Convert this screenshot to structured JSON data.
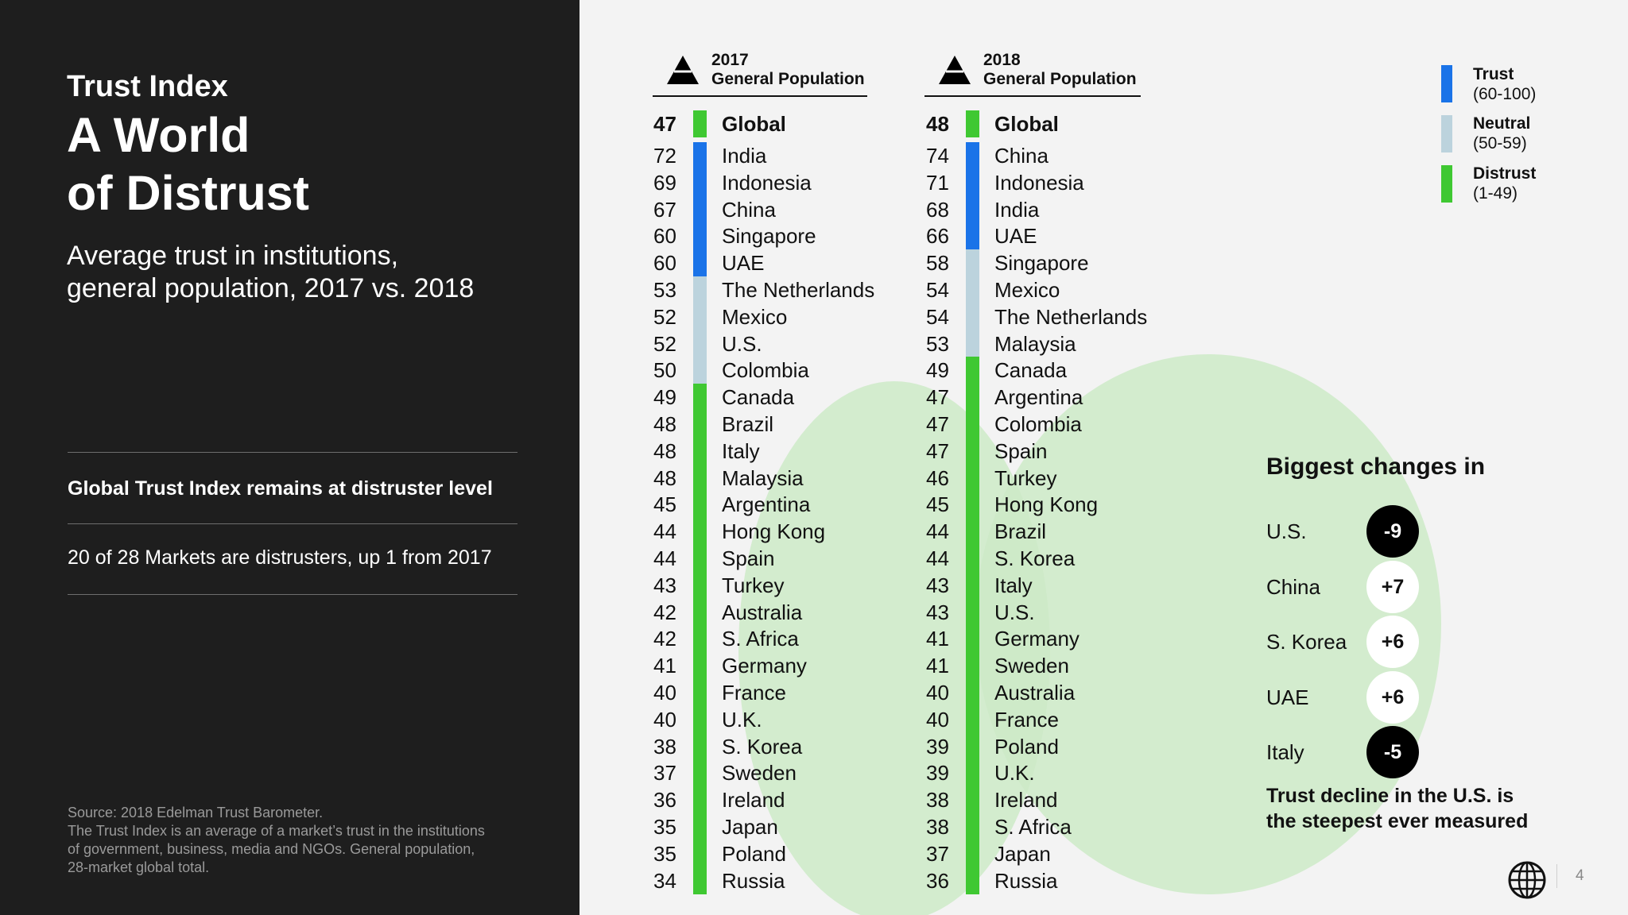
{
  "left": {
    "label": "Trust Index",
    "title_lines": [
      "A World",
      "of Distrust"
    ],
    "subtitle_lines": [
      "Average trust in institutions,",
      "general population, 2017 vs. 2018"
    ],
    "finding1": "Global Trust Index remains at distruster level",
    "finding2": "20 of 28 Markets are distrusters, up 1 from 2017",
    "source_lines": [
      "Source: 2018 Edelman Trust Barometer.",
      "The Trust Index is an average of a market’s trust in the institutions",
      "of government, business, media and NGOs. General population,",
      "28-market global total."
    ]
  },
  "legend": [
    {
      "name": "Trust",
      "range": "(60-100)",
      "color": "#1a73e8"
    },
    {
      "name": "Neutral",
      "range": "(50-59)",
      "color": "#bcd3dd"
    },
    {
      "name": "Distrust",
      "range": "(1-49)",
      "color": "#3fc832"
    }
  ],
  "chart_data": [
    {
      "type": "table",
      "year": "2017",
      "population": "General Population",
      "rows": [
        {
          "country": "Global",
          "value": 47
        },
        {
          "country": "India",
          "value": 72
        },
        {
          "country": "Indonesia",
          "value": 69
        },
        {
          "country": "China",
          "value": 67
        },
        {
          "country": "Singapore",
          "value": 60
        },
        {
          "country": "UAE",
          "value": 60
        },
        {
          "country": "The Netherlands",
          "value": 53
        },
        {
          "country": "Mexico",
          "value": 52
        },
        {
          "country": "U.S.",
          "value": 52
        },
        {
          "country": "Colombia",
          "value": 50
        },
        {
          "country": "Canada",
          "value": 49
        },
        {
          "country": "Brazil",
          "value": 48
        },
        {
          "country": "Italy",
          "value": 48
        },
        {
          "country": "Malaysia",
          "value": 48
        },
        {
          "country": "Argentina",
          "value": 45
        },
        {
          "country": "Hong Kong",
          "value": 44
        },
        {
          "country": "Spain",
          "value": 44
        },
        {
          "country": "Turkey",
          "value": 43
        },
        {
          "country": "Australia",
          "value": 42
        },
        {
          "country": "S. Africa",
          "value": 42
        },
        {
          "country": "Germany",
          "value": 41
        },
        {
          "country": "France",
          "value": 40
        },
        {
          "country": "U.K.",
          "value": 40
        },
        {
          "country": "S. Korea",
          "value": 38
        },
        {
          "country": "Sweden",
          "value": 37
        },
        {
          "country": "Ireland",
          "value": 36
        },
        {
          "country": "Japan",
          "value": 35
        },
        {
          "country": "Poland",
          "value": 35
        },
        {
          "country": "Russia",
          "value": 34
        }
      ]
    },
    {
      "type": "table",
      "year": "2018",
      "population": "General Population",
      "rows": [
        {
          "country": "Global",
          "value": 48
        },
        {
          "country": "China",
          "value": 74
        },
        {
          "country": "Indonesia",
          "value": 71
        },
        {
          "country": "India",
          "value": 68
        },
        {
          "country": "UAE",
          "value": 66
        },
        {
          "country": "Singapore",
          "value": 58
        },
        {
          "country": "Mexico",
          "value": 54
        },
        {
          "country": "The Netherlands",
          "value": 54
        },
        {
          "country": "Malaysia",
          "value": 53
        },
        {
          "country": "Canada",
          "value": 49
        },
        {
          "country": "Argentina",
          "value": 47
        },
        {
          "country": "Colombia",
          "value": 47
        },
        {
          "country": "Spain",
          "value": 47
        },
        {
          "country": "Turkey",
          "value": 46
        },
        {
          "country": "Hong Kong",
          "value": 45
        },
        {
          "country": "Brazil",
          "value": 44
        },
        {
          "country": "S. Korea",
          "value": 44
        },
        {
          "country": "Italy",
          "value": 43
        },
        {
          "country": "U.S.",
          "value": 43
        },
        {
          "country": "Germany",
          "value": 41
        },
        {
          "country": "Sweden",
          "value": 41
        },
        {
          "country": "Australia",
          "value": 40
        },
        {
          "country": "France",
          "value": 40
        },
        {
          "country": "Poland",
          "value": 39
        },
        {
          "country": "U.K.",
          "value": 39
        },
        {
          "country": "Ireland",
          "value": 38
        },
        {
          "country": "S. Africa",
          "value": 38
        },
        {
          "country": "Japan",
          "value": 37
        },
        {
          "country": "Russia",
          "value": 36
        }
      ]
    }
  ],
  "changes": {
    "title": "Biggest changes in",
    "items": [
      {
        "country": "U.S.",
        "change": "-9"
      },
      {
        "country": "China",
        "change": "+7"
      },
      {
        "country": "S. Korea",
        "change": "+6"
      },
      {
        "country": "UAE",
        "change": "+6"
      },
      {
        "country": "Italy",
        "change": "-5"
      }
    ],
    "note_lines": [
      "Trust decline in the U.S. is",
      "the steepest ever measured"
    ]
  },
  "page_number": "4",
  "icons": {
    "column_header": "pyramid-icon",
    "logo": "globe-icon"
  }
}
